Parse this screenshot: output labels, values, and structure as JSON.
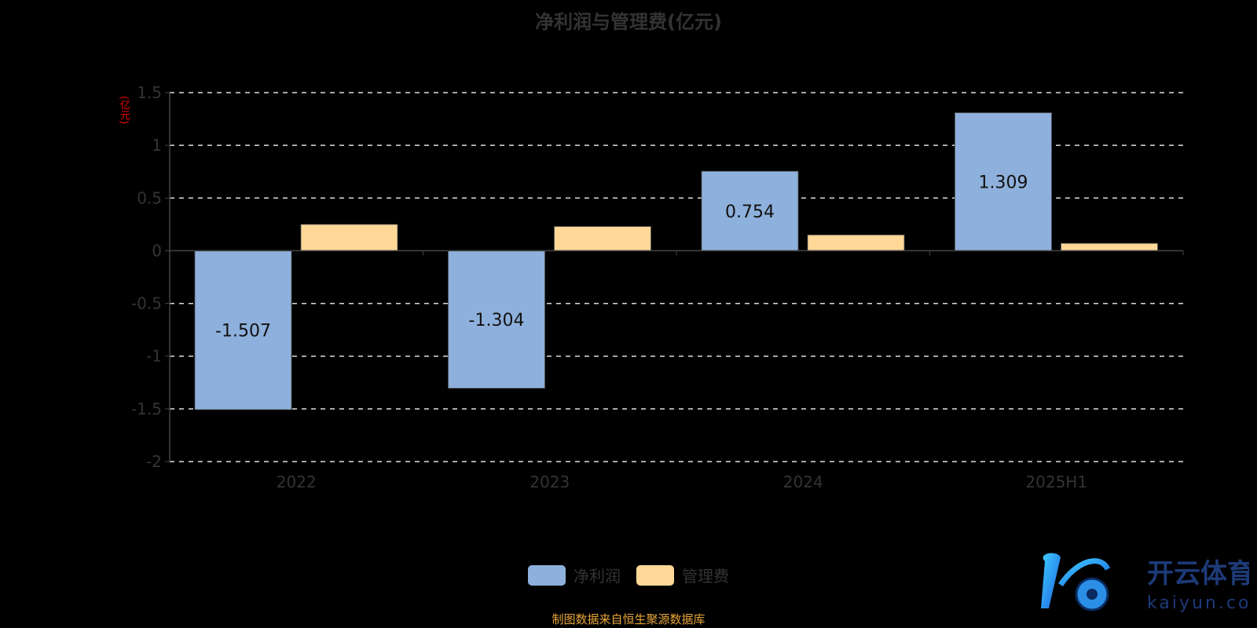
{
  "chart_data": {
    "type": "bar",
    "title": "净利润与管理费(亿元)",
    "ylabel": "(亿元)",
    "categories": [
      "2022",
      "2023",
      "2024",
      "2025H1"
    ],
    "series": [
      {
        "name": "净利润",
        "values": [
          -1.507,
          -1.304,
          0.754,
          1.309
        ],
        "color": "#8eb0dc",
        "labels": [
          "-1.507",
          "-1.304",
          "0.754",
          "1.309"
        ]
      },
      {
        "name": "管理费",
        "values": [
          0.25,
          0.23,
          0.15,
          0.07
        ],
        "color": "#ffd898"
      }
    ],
    "ylim": [
      -2,
      1.5
    ],
    "yticks": [
      "1.5",
      "1",
      "0.5",
      "0",
      "-0.5",
      "-1",
      "-1.5",
      "-2"
    ],
    "grid": true,
    "legend": "bottom-center"
  },
  "source": "制图数据来自恒生聚源数据库",
  "watermark": {
    "brand": "开云体育",
    "domain": "kaiyun.com"
  }
}
